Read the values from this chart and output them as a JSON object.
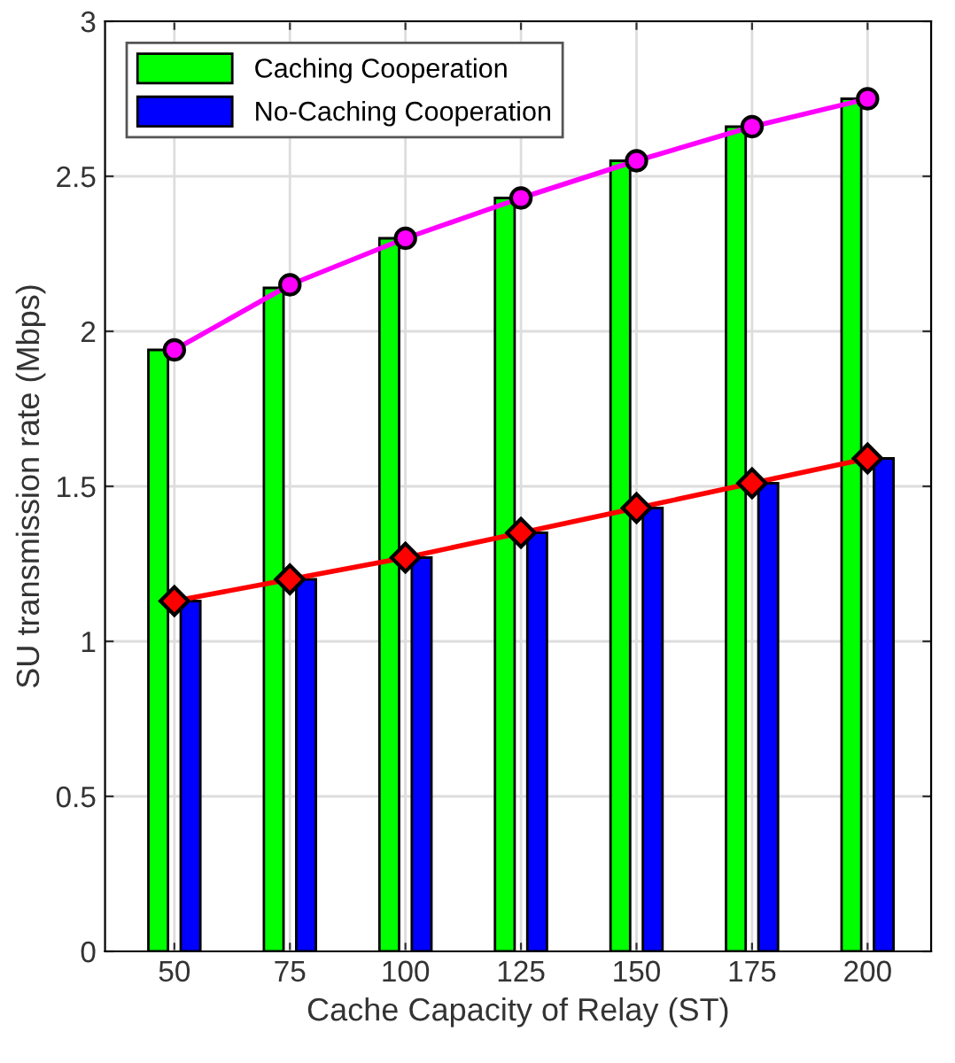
{
  "chart_data": {
    "type": "bar",
    "xlabel": "Cache Capacity of Relay (ST)",
    "ylabel": "SU transmission rate (Mbps)",
    "categories": [
      "50",
      "75",
      "100",
      "125",
      "150",
      "175",
      "200"
    ],
    "series": [
      {
        "name": "Caching Cooperation",
        "color": "#00ff00",
        "values": [
          1.94,
          2.14,
          2.3,
          2.43,
          2.55,
          2.66,
          2.75
        ]
      },
      {
        "name": "No-Caching Cooperation",
        "color": "#0000ff",
        "values": [
          1.13,
          1.2,
          1.27,
          1.35,
          1.43,
          1.51,
          1.59
        ]
      },
      {
        "type": "line",
        "color": "#ff00ff",
        "marker": "circle",
        "values": [
          1.94,
          2.15,
          2.3,
          2.43,
          2.55,
          2.66,
          2.75
        ]
      },
      {
        "type": "line",
        "color": "#ff0000",
        "marker": "diamond",
        "values": [
          1.13,
          1.2,
          1.27,
          1.35,
          1.43,
          1.51,
          1.59
        ]
      }
    ],
    "ylim": [
      0,
      3
    ],
    "yticks": [
      0,
      0.5,
      1,
      1.5,
      2,
      2.5,
      3
    ],
    "grid": true,
    "legend": "top left"
  }
}
